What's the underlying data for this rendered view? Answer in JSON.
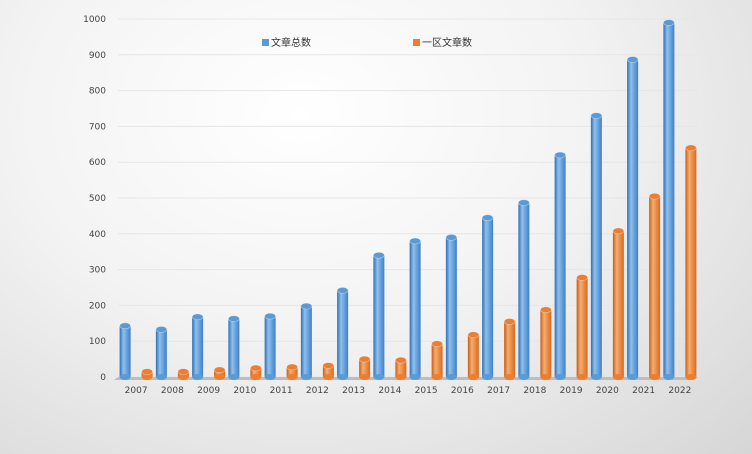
{
  "chart_data": {
    "type": "bar",
    "categories": [
      "2007",
      "2008",
      "2009",
      "2010",
      "2011",
      "2012",
      "2013",
      "2014",
      "2015",
      "2016",
      "2017",
      "2018",
      "2019",
      "2020",
      "2021",
      "2022"
    ],
    "series": [
      {
        "name": "文章总数",
        "color": "#5b9bd5",
        "values": [
          143,
          133,
          168,
          163,
          170,
          198,
          242,
          340,
          380,
          390,
          445,
          487,
          620,
          730,
          887,
          990
        ]
      },
      {
        "name": "一区文章数",
        "color": "#ed7d31",
        "values": [
          15,
          15,
          20,
          25,
          28,
          32,
          50,
          47,
          93,
          118,
          155,
          188,
          278,
          408,
          505,
          640
        ]
      }
    ],
    "ylim": [
      0,
      1000
    ],
    "yticks": [
      0,
      100,
      200,
      300,
      400,
      500,
      600,
      700,
      800,
      900,
      1000
    ],
    "grid": true,
    "legend_position": "top"
  }
}
